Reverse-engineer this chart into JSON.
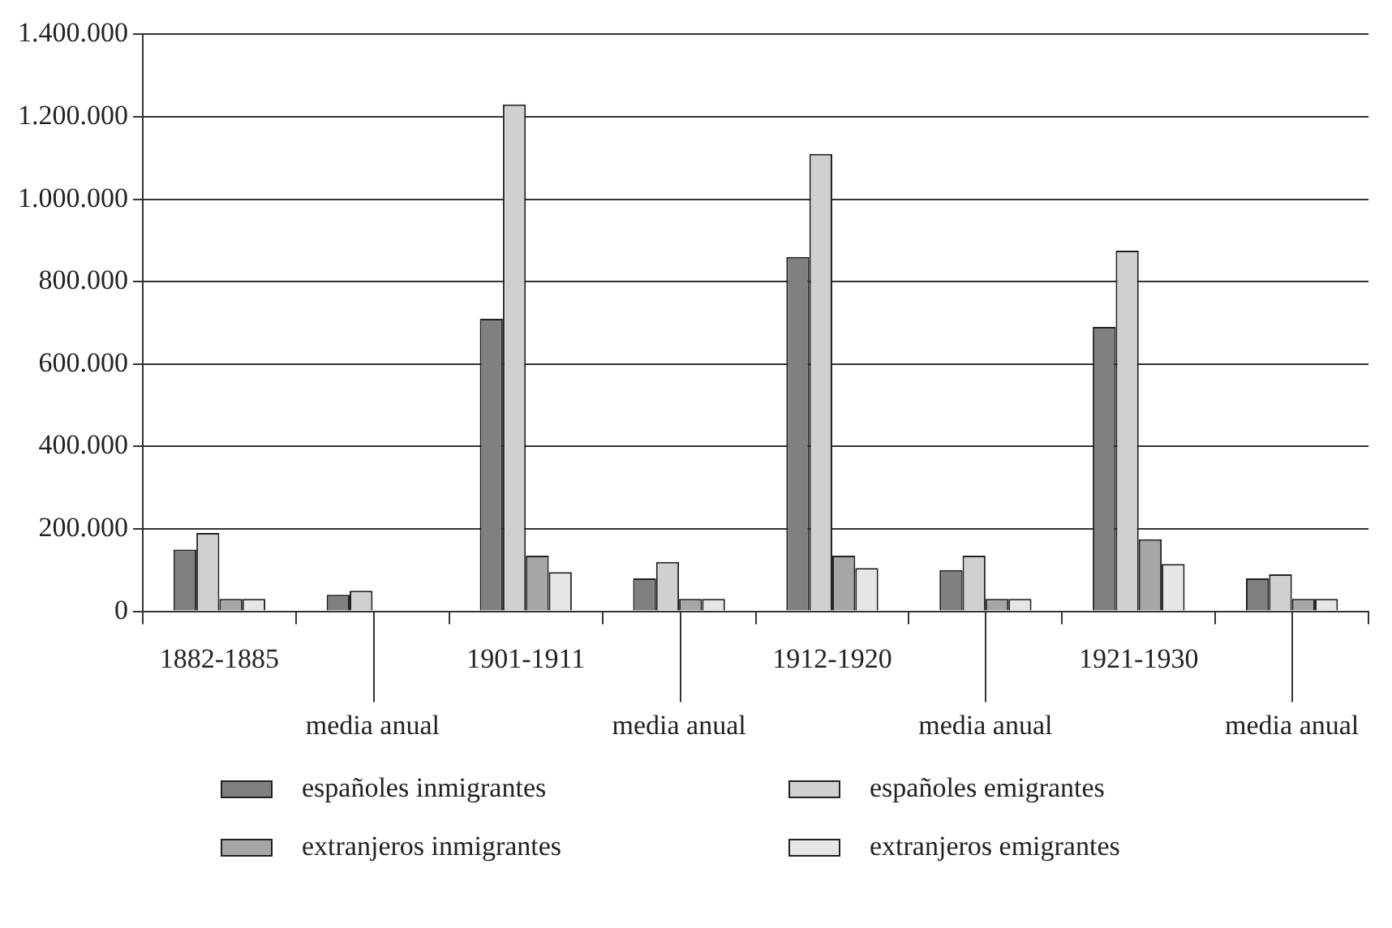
{
  "chart_data": {
    "type": "bar",
    "categories": [
      "1882-1885",
      "media anual",
      "1901-1911",
      "media anual",
      "1912-1920",
      "media anual",
      "1921-1930",
      "media anual"
    ],
    "series": [
      {
        "name": "españoles inmigrantes",
        "color": "#808080",
        "values": [
          150000,
          40000,
          710000,
          80000,
          860000,
          100000,
          690000,
          80000
        ]
      },
      {
        "name": "españoles emigrantes",
        "color": "#d0d0d0",
        "values": [
          190000,
          50000,
          1230000,
          120000,
          1110000,
          135000,
          875000,
          90000
        ]
      },
      {
        "name": "extranjeros inmigrantes",
        "color": "#a6a6a6",
        "values": [
          30000,
          null,
          135000,
          30000,
          135000,
          30000,
          175000,
          30000
        ]
      },
      {
        "name": "extranjeros emigrantes",
        "color": "#e6e6e6",
        "values": [
          30000,
          null,
          95000,
          30000,
          105000,
          30000,
          115000,
          30000
        ]
      }
    ],
    "ylim": [
      0,
      1400000
    ],
    "yticks": [
      {
        "value": 0,
        "label": "0"
      },
      {
        "value": 200000,
        "label": "200.000"
      },
      {
        "value": 400000,
        "label": "400.000"
      },
      {
        "value": 600000,
        "label": "600.000"
      },
      {
        "value": 800000,
        "label": "800.000"
      },
      {
        "value": 1000000,
        "label": "1.000.000"
      },
      {
        "value": 1200000,
        "label": "1.200.000"
      },
      {
        "value": 1400000,
        "label": "1.400.000"
      }
    ],
    "grid": "y",
    "legend": "bottom"
  }
}
